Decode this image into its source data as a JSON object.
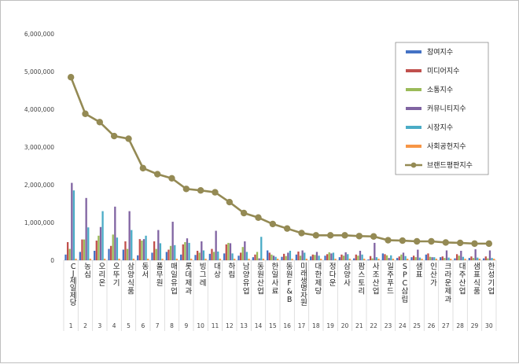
{
  "chart_data": {
    "type": "bar",
    "title": "",
    "xlabel": "",
    "ylabel": "",
    "ylim": [
      0,
      6000000
    ],
    "y_ticks": [
      "0",
      "1,000,000",
      "2,000,000",
      "3,000,000",
      "4,000,000",
      "5,000,000",
      "6,000,000"
    ],
    "grid": false,
    "legend_position": "top-right",
    "categories": [
      "CJ제일제당",
      "농심",
      "오리온",
      "오뚜기",
      "삼양식품",
      "동서",
      "풀무원",
      "매일유업",
      "롯데제과",
      "빙그레",
      "대상",
      "하림",
      "남양유업",
      "동원산업",
      "한일사료",
      "동원F&B",
      "미래생명자원",
      "대한제당",
      "정다운",
      "삼양사",
      "팜스토리",
      "사조산업",
      "일주푸드",
      "SPC삼립",
      "샘표",
      "인산가",
      "크라운제과",
      "대주산업",
      "샘표식품",
      "한성기업"
    ],
    "rank_labels": [
      "1",
      "2",
      "3",
      "4",
      "5",
      "6",
      "7",
      "8",
      "9",
      "10",
      "11",
      "12",
      "13",
      "14",
      "15",
      "16",
      "17",
      "18",
      "19",
      "20",
      "21",
      "22",
      "23",
      "24",
      "25",
      "26",
      "27",
      "28",
      "29",
      "30"
    ],
    "series": [
      {
        "name": "참여지수",
        "type": "bar",
        "color": "#4472c4",
        "values": [
          150000,
          220000,
          250000,
          300000,
          280000,
          130000,
          200000,
          220000,
          150000,
          140000,
          170000,
          180000,
          120000,
          80000,
          260000,
          90000,
          150000,
          100000,
          120000,
          80000,
          50000,
          20000,
          180000,
          60000,
          80000,
          150000,
          80000,
          50000,
          60000,
          50000
        ]
      },
      {
        "name": "미디어지수",
        "type": "bar",
        "color": "#c0504d",
        "values": [
          480000,
          550000,
          520000,
          380000,
          500000,
          560000,
          500000,
          280000,
          420000,
          250000,
          300000,
          420000,
          200000,
          150000,
          200000,
          170000,
          230000,
          150000,
          160000,
          150000,
          150000,
          110000,
          160000,
          100000,
          120000,
          180000,
          100000,
          160000,
          100000,
          100000
        ]
      },
      {
        "name": "소통지수",
        "type": "bar",
        "color": "#9bbb59",
        "values": [
          300000,
          550000,
          650000,
          680000,
          300000,
          520000,
          300000,
          380000,
          480000,
          200000,
          220000,
          460000,
          350000,
          220000,
          150000,
          110000,
          120000,
          140000,
          210000,
          120000,
          120000,
          50000,
          130000,
          150000,
          80000,
          90000,
          60000,
          120000,
          60000,
          50000
        ]
      },
      {
        "name": "커뮤니티지수",
        "type": "bar",
        "color": "#8064a2",
        "values": [
          2050000,
          1650000,
          880000,
          1420000,
          1300000,
          560000,
          800000,
          1020000,
          580000,
          500000,
          780000,
          450000,
          500000,
          50000,
          120000,
          200000,
          260000,
          220000,
          180000,
          210000,
          250000,
          460000,
          60000,
          200000,
          280000,
          80000,
          260000,
          250000,
          290000,
          260000
        ]
      },
      {
        "name": "시장지수",
        "type": "bar",
        "color": "#4bacc6",
        "values": [
          1850000,
          870000,
          1300000,
          600000,
          800000,
          650000,
          450000,
          400000,
          460000,
          260000,
          230000,
          180000,
          220000,
          620000,
          90000,
          250000,
          200000,
          120000,
          200000,
          160000,
          150000,
          80000,
          130000,
          110000,
          70000,
          80000,
          70000,
          90000,
          70000,
          60000
        ]
      },
      {
        "name": "사회공헌지수",
        "type": "bar",
        "color": "#f79646",
        "values": [
          40000,
          40000,
          40000,
          40000,
          40000,
          40000,
          40000,
          40000,
          40000,
          40000,
          40000,
          40000,
          40000,
          40000,
          40000,
          40000,
          40000,
          40000,
          40000,
          40000,
          40000,
          40000,
          40000,
          40000,
          40000,
          40000,
          40000,
          40000,
          40000,
          40000
        ]
      },
      {
        "name": "브랜드평판지수",
        "type": "line",
        "color": "#948a54",
        "values": [
          4850000,
          3880000,
          3660000,
          3290000,
          3220000,
          2440000,
          2280000,
          2170000,
          1890000,
          1850000,
          1800000,
          1540000,
          1250000,
          1130000,
          960000,
          840000,
          720000,
          660000,
          660000,
          660000,
          640000,
          630000,
          530000,
          520000,
          500000,
          500000,
          470000,
          460000,
          440000,
          440000
        ]
      }
    ]
  }
}
